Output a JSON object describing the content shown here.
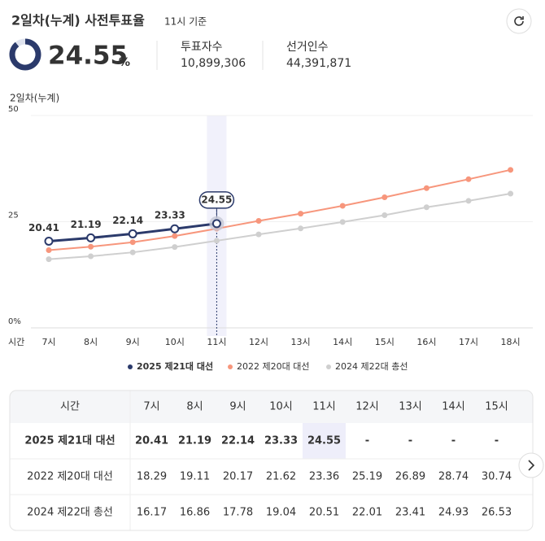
{
  "header": {
    "title": "2일차(누계) 사전투표율",
    "basis": "11시 기준",
    "rate": "24.55",
    "rate_unit": "%",
    "stats": [
      {
        "label": "투표자수",
        "value": "10,899,306"
      },
      {
        "label": "선거인수",
        "value": "44,391,871"
      }
    ]
  },
  "chart_data": {
    "type": "line",
    "y_label": "2일차(누계)",
    "x_label": "시간",
    "categories": [
      "7시",
      "8시",
      "9시",
      "10시",
      "11시",
      "12시",
      "13시",
      "14시",
      "15시",
      "16시",
      "17시",
      "18시"
    ],
    "ylim": [
      0,
      50
    ],
    "yticks": [
      {
        "value": 0,
        "label": "0%"
      },
      25,
      50
    ],
    "grid": true,
    "legend": "bottom",
    "highlight_index": 4,
    "series": [
      {
        "name": "2025 제21대 대선",
        "color": "#2b3a6b",
        "values": [
          20.41,
          21.19,
          22.14,
          23.33,
          24.55,
          null,
          null,
          null,
          null,
          null,
          null,
          null
        ]
      },
      {
        "name": "2022 제20대 대선",
        "color": "#f7967c",
        "values": [
          18.29,
          19.11,
          20.17,
          21.62,
          23.36,
          25.19,
          26.89,
          28.74,
          30.74,
          32.9,
          35.0,
          37.2
        ]
      },
      {
        "name": "2024 제22대 총선",
        "color": "#cfcfcf",
        "values": [
          16.17,
          16.86,
          17.78,
          19.04,
          20.51,
          22.01,
          23.41,
          24.93,
          26.53,
          28.4,
          29.9,
          31.6
        ]
      }
    ]
  },
  "table": {
    "header": [
      "시간",
      "7시",
      "8시",
      "9시",
      "10시",
      "11시",
      "12시",
      "13시",
      "14시",
      "15시"
    ],
    "rows": [
      [
        "2025 제21대 대선",
        20.41,
        21.19,
        22.14,
        23.33,
        24.55,
        "-",
        "-",
        "-",
        "-"
      ],
      [
        "2022 제20대 대선",
        18.29,
        19.11,
        20.17,
        21.62,
        23.36,
        25.19,
        26.89,
        28.74,
        30.74
      ],
      [
        "2024 제22대 총선",
        16.17,
        16.86,
        17.78,
        19.04,
        20.51,
        22.01,
        23.41,
        24.93,
        26.53
      ]
    ]
  }
}
